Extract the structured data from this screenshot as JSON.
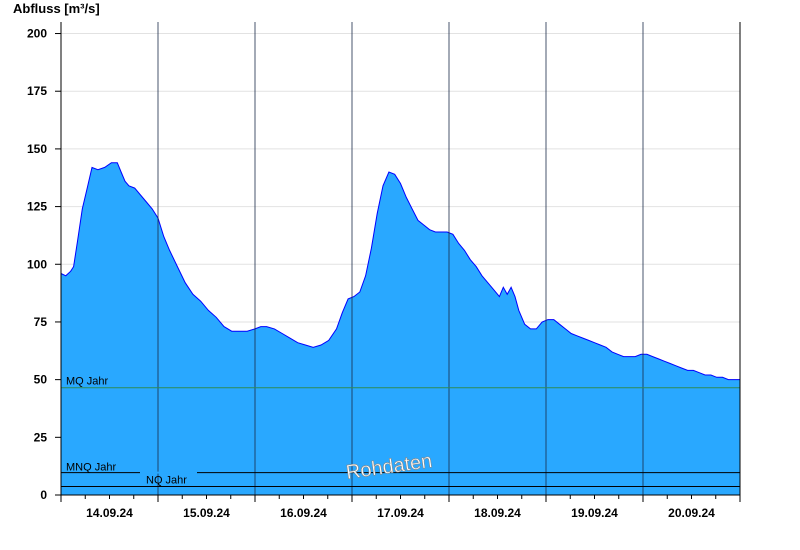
{
  "chart_data": {
    "type": "area",
    "ylabel": "Abfluss [m³/s]",
    "ylim": [
      0,
      205
    ],
    "yticks": [
      0,
      25,
      50,
      75,
      100,
      125,
      150,
      175,
      200
    ],
    "xlim": [
      0,
      7
    ],
    "grid": true,
    "day_labels": [
      "14.09.24",
      "15.09.24",
      "16.09.24",
      "17.09.24",
      "18.09.24",
      "19.09.24",
      "20.09.24"
    ],
    "watermark": "Rohdaten",
    "reference_lines": [
      {
        "label": "MQ Jahr",
        "value": 46.5,
        "color": "#2e8b57"
      },
      {
        "label": "MNQ Jahr",
        "value": 9.7,
        "color": "#000000"
      },
      {
        "label": "NQ Jahr",
        "value": 3.7,
        "color": "#000000"
      }
    ],
    "series": [
      {
        "color": "#29a8ff",
        "line_color": "#0000ff",
        "points": [
          [
            0.0,
            96
          ],
          [
            0.05,
            95
          ],
          [
            0.1,
            97
          ],
          [
            0.13,
            99
          ],
          [
            0.17,
            110
          ],
          [
            0.22,
            124
          ],
          [
            0.27,
            133
          ],
          [
            0.32,
            142
          ],
          [
            0.38,
            141
          ],
          [
            0.45,
            142
          ],
          [
            0.52,
            144
          ],
          [
            0.58,
            144
          ],
          [
            0.62,
            140
          ],
          [
            0.66,
            136
          ],
          [
            0.7,
            134
          ],
          [
            0.76,
            133
          ],
          [
            0.82,
            130
          ],
          [
            0.88,
            127
          ],
          [
            0.94,
            124
          ],
          [
            1.0,
            120
          ],
          [
            1.06,
            112
          ],
          [
            1.12,
            106
          ],
          [
            1.2,
            99
          ],
          [
            1.28,
            92
          ],
          [
            1.36,
            87
          ],
          [
            1.44,
            84
          ],
          [
            1.52,
            80
          ],
          [
            1.6,
            77
          ],
          [
            1.68,
            73
          ],
          [
            1.76,
            71
          ],
          [
            1.84,
            71
          ],
          [
            1.92,
            71
          ],
          [
            2.0,
            72
          ],
          [
            2.06,
            73
          ],
          [
            2.12,
            73
          ],
          [
            2.2,
            72
          ],
          [
            2.28,
            70
          ],
          [
            2.36,
            68
          ],
          [
            2.44,
            66
          ],
          [
            2.52,
            65
          ],
          [
            2.6,
            64
          ],
          [
            2.68,
            65
          ],
          [
            2.76,
            67
          ],
          [
            2.84,
            72
          ],
          [
            2.9,
            79
          ],
          [
            2.96,
            85
          ],
          [
            3.02,
            86
          ],
          [
            3.08,
            88
          ],
          [
            3.14,
            95
          ],
          [
            3.2,
            107
          ],
          [
            3.26,
            122
          ],
          [
            3.32,
            134
          ],
          [
            3.38,
            140
          ],
          [
            3.44,
            139
          ],
          [
            3.5,
            135
          ],
          [
            3.56,
            129
          ],
          [
            3.62,
            124
          ],
          [
            3.68,
            119
          ],
          [
            3.74,
            117
          ],
          [
            3.8,
            115
          ],
          [
            3.86,
            114
          ],
          [
            3.92,
            114
          ],
          [
            3.98,
            114
          ],
          [
            4.04,
            113
          ],
          [
            4.1,
            109
          ],
          [
            4.16,
            106
          ],
          [
            4.22,
            102
          ],
          [
            4.28,
            99
          ],
          [
            4.34,
            95
          ],
          [
            4.4,
            92
          ],
          [
            4.46,
            89
          ],
          [
            4.52,
            86
          ],
          [
            4.56,
            90
          ],
          [
            4.6,
            87
          ],
          [
            4.64,
            90
          ],
          [
            4.68,
            86
          ],
          [
            4.72,
            80
          ],
          [
            4.78,
            74
          ],
          [
            4.84,
            72
          ],
          [
            4.9,
            72
          ],
          [
            4.96,
            75
          ],
          [
            5.02,
            76
          ],
          [
            5.08,
            76
          ],
          [
            5.14,
            74
          ],
          [
            5.2,
            72
          ],
          [
            5.26,
            70
          ],
          [
            5.32,
            69
          ],
          [
            5.38,
            68
          ],
          [
            5.44,
            67
          ],
          [
            5.5,
            66
          ],
          [
            5.56,
            65
          ],
          [
            5.62,
            64
          ],
          [
            5.68,
            62
          ],
          [
            5.74,
            61
          ],
          [
            5.8,
            60
          ],
          [
            5.86,
            60
          ],
          [
            5.92,
            60
          ],
          [
            5.98,
            61
          ],
          [
            6.04,
            61
          ],
          [
            6.1,
            60
          ],
          [
            6.16,
            59
          ],
          [
            6.22,
            58
          ],
          [
            6.28,
            57
          ],
          [
            6.34,
            56
          ],
          [
            6.4,
            55
          ],
          [
            6.46,
            54
          ],
          [
            6.52,
            54
          ],
          [
            6.58,
            53
          ],
          [
            6.64,
            52
          ],
          [
            6.7,
            52
          ],
          [
            6.76,
            51
          ],
          [
            6.82,
            51
          ],
          [
            6.88,
            50
          ],
          [
            6.94,
            50
          ],
          [
            7.0,
            50
          ]
        ]
      }
    ]
  }
}
